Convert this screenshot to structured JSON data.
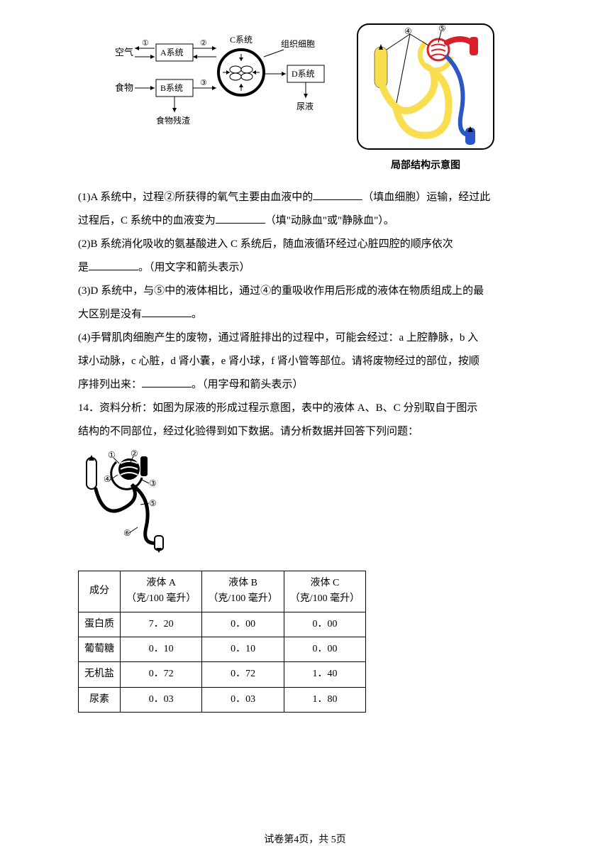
{
  "diagram_left": {
    "air": "空气",
    "food": "食物",
    "box_a": "A系统",
    "box_b": "B系统",
    "box_d": "D系统",
    "c_label": "C系统",
    "tissue_cells": "组织细胞",
    "food_residue": "食物残渣",
    "urine": "尿液",
    "n1": "①",
    "n2": "②",
    "n3": "③",
    "n4": "④",
    "n5": "⑤"
  },
  "right_caption": "局部结构示意图",
  "q1": {
    "prefix": "(1)A 系统中，过程②所获得的氧气主要由血液中的",
    "mid": "（填血细胞）运输，经过此",
    "line2a": "过程后，C 系统中的血液变为",
    "line2b": "（填\"动脉血\"或\"静脉血\"）。"
  },
  "q2": {
    "line1": "(2)B 系统消化吸收的氨基酸进入 C 系统后，随血液循环经过心脏四腔的顺序依次",
    "line2a": "是",
    "line2b": "。（用文字和箭头表示）"
  },
  "q3": {
    "line1": "(3)D 系统中，与⑤中的液体相比，通过④的重吸收作用后形成的液体在物质组成上的最",
    "line2a": "大区别是没有",
    "line2b": "。"
  },
  "q4": {
    "line1": "(4)手臂肌肉细胞产生的废物，通过肾脏排出的过程中，可能会经过：a 上腔静脉，b 入",
    "line2": "球小动脉，c 心脏，d 肾小囊，e 肾小球，f 肾小管等部位。请将废物经过的部位，按顺",
    "line3a": "序排列出来：",
    "line3b": "。（用字母和箭头表示）"
  },
  "q14": {
    "line1": "14．资料分析：如图为尿液的形成过程示意图，表中的液体 A、B、C 分别取自于图示",
    "line2": "结构的不同部位，经过化验得到如下数据。请分析数据并回答下列问题："
  },
  "table": {
    "header_component": "成分",
    "header_a": "液体 A",
    "header_b": "液体 B",
    "header_c": "液体 C",
    "unit": "（克/100 毫升）",
    "rows": [
      {
        "name": "蛋白质",
        "a": "7．20",
        "b": "0．00",
        "c": "0．00"
      },
      {
        "name": "葡萄糖",
        "a": "0．10",
        "b": "0．10",
        "c": "0．00"
      },
      {
        "name": "无机盐",
        "a": "0．72",
        "b": "0．72",
        "c": "1．40"
      },
      {
        "name": "尿素",
        "a": "0．03",
        "b": "0．03",
        "c": "1．80"
      }
    ]
  },
  "footer": "试卷第4页，共 5页",
  "colors": {
    "red": "#d9202a",
    "yellow": "#f9de4f",
    "blue": "#2b57c6",
    "dark": "#000000",
    "box_border": "#000000"
  },
  "nephron_labels": {
    "n1": "①",
    "n2": "②",
    "n3": "③",
    "n4": "④",
    "n5": "⑤",
    "n6": "⑥"
  }
}
